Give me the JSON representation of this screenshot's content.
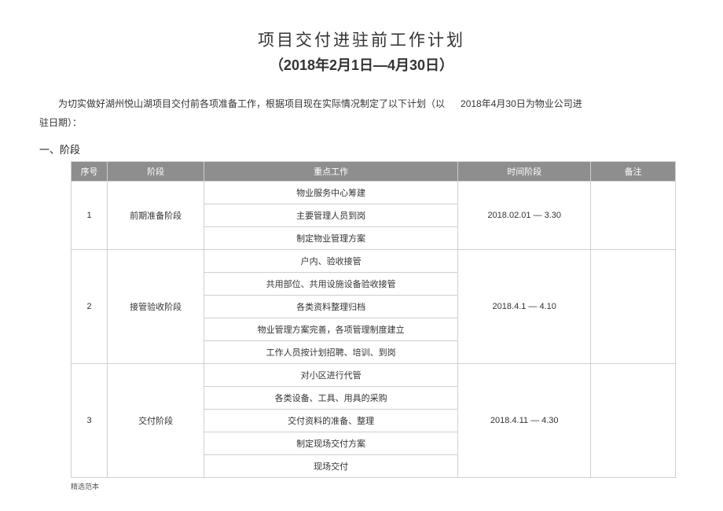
{
  "title": {
    "line1": "项目交付进驻前工作计划",
    "line2": "（2018年2月1日—4月30日）"
  },
  "intro": {
    "part1": "为切实做好湖州悦山湖项目交付前各项准备工作，根据项目现在实际情况制定了以下计划（以",
    "date_emphasis": "2018年4月30日为物业公司进",
    "part2": "驻日期）："
  },
  "section_heading": "一、阶段",
  "columns": {
    "seq": "序号",
    "phase": "阶段",
    "work": "重点工作",
    "time": "时间阶段",
    "note": "备注"
  },
  "phases": [
    {
      "seq": "1",
      "name": "前期准备阶段",
      "time": "2018.02.01 — 3.30",
      "works": [
        "物业服务中心筹建",
        "主要管理人员到岗",
        "制定物业管理方案"
      ]
    },
    {
      "seq": "2",
      "name": "接管验收阶段",
      "time": "2018.4.1 — 4.10",
      "works": [
        "户内、验收接管",
        "共用部位、共用设施设备验收接管",
        "各类资料整理归档",
        "物业管理方案完善，各项管理制度建立",
        "工作人员按计划招聘、培训、到岗"
      ]
    },
    {
      "seq": "3",
      "name": "交付阶段",
      "time": "2018.4.11 — 4.30",
      "works": [
        "对小区进行代管",
        "各类设备、工具、用具的采购",
        "交付资料的准备、整理",
        "制定现场交付方案",
        "现场交付"
      ]
    }
  ],
  "footer": "精选范本"
}
